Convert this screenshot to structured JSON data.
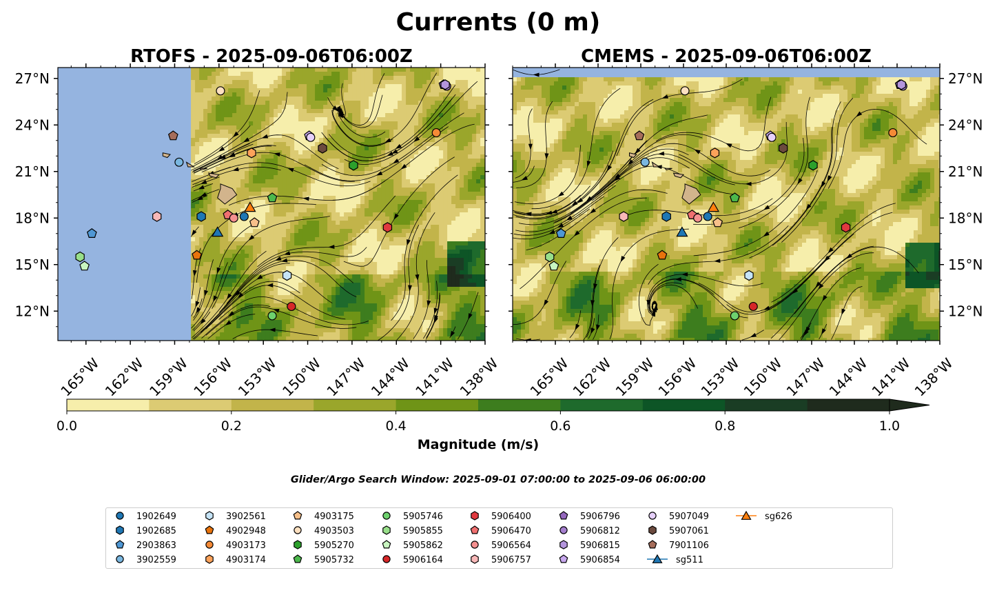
{
  "chart_data": {
    "type": "map-contour-streamplot",
    "title": "Currents (0 m)",
    "panels": [
      {
        "title": "RTOFS - 2025-09-06T06:00Z",
        "model": "RTOFS"
      },
      {
        "title": "CMEMS - 2025-09-06T06:00Z",
        "model": "CMEMS"
      }
    ],
    "lon_range": [
      -167,
      -138
    ],
    "lat_range": [
      10,
      28
    ],
    "lon_ticks": [
      {
        "value": -165,
        "label": "165°W"
      },
      {
        "value": -162,
        "label": "162°W"
      },
      {
        "value": -159,
        "label": "159°W"
      },
      {
        "value": -156,
        "label": "156°W"
      },
      {
        "value": -153,
        "label": "153°W"
      },
      {
        "value": -150,
        "label": "150°W"
      },
      {
        "value": -147,
        "label": "147°W"
      },
      {
        "value": -144,
        "label": "144°W"
      },
      {
        "value": -141,
        "label": "141°W"
      },
      {
        "value": -138,
        "label": "138°W"
      }
    ],
    "lat_ticks": [
      {
        "value": 27,
        "label": "27°N"
      },
      {
        "value": 24,
        "label": "24°N"
      },
      {
        "value": 21,
        "label": "21°N"
      },
      {
        "value": 18,
        "label": "18°N"
      },
      {
        "value": 15,
        "label": "15°N"
      },
      {
        "value": 12,
        "label": "12°N"
      }
    ],
    "colorbar": {
      "label": "Magnitude (m/s)",
      "min": 0.0,
      "max": 1.0,
      "extend": "max",
      "levels": [
        0.0,
        0.1,
        0.2,
        0.3,
        0.4,
        0.5,
        0.6,
        0.7,
        0.8,
        0.9,
        1.0
      ],
      "colors": [
        "#f6eeab",
        "#dccb73",
        "#c2b44a",
        "#9aa62b",
        "#6f9417",
        "#3d7d1e",
        "#1e6a2c",
        "#0d5526",
        "#1a3d24",
        "#1f2b1d"
      ],
      "ticks": [
        {
          "value": 0.0,
          "label": "0.0"
        },
        {
          "value": 0.2,
          "label": "0.2"
        },
        {
          "value": 0.4,
          "label": "0.4"
        },
        {
          "value": 0.6,
          "label": "0.6"
        },
        {
          "value": 0.8,
          "label": "0.8"
        },
        {
          "value": 1.0,
          "label": "1.0"
        }
      ]
    },
    "subtitle": "Glider/Argo Search Window: 2025-09-01 07:00:00 to 2025-09-06 06:00:00",
    "platforms": [
      {
        "id": "1902649",
        "marker": "circle",
        "color": "#1f77b4",
        "lon": -154.3,
        "lat": 18.1
      },
      {
        "id": "1902685",
        "marker": "hexagon",
        "color": "#1f77b4",
        "lon": -157.2,
        "lat": 18.1
      },
      {
        "id": "2903863",
        "marker": "pentagon",
        "color": "#4f97d4",
        "lon": -164.6,
        "lat": 17.0
      },
      {
        "id": "3902559",
        "marker": "circle",
        "color": "#7ab7e0",
        "lon": -158.7,
        "lat": 21.6
      },
      {
        "id": "3902561",
        "marker": "hexagon",
        "color": "#c6e4f7",
        "lon": -151.4,
        "lat": 14.3
      },
      {
        "id": "4902948",
        "marker": "pentagon",
        "color": "#e8730c",
        "lon": -157.5,
        "lat": 15.6
      },
      {
        "id": "4903173",
        "marker": "circle",
        "color": "#f58a36",
        "lon": -141.3,
        "lat": 23.5
      },
      {
        "id": "4903174",
        "marker": "hexagon",
        "color": "#fca25a",
        "lon": -153.8,
        "lat": 22.2
      },
      {
        "id": "4903175",
        "marker": "pentagon",
        "color": "#f7c08a",
        "lon": -153.6,
        "lat": 17.7
      },
      {
        "id": "4903503",
        "marker": "circle",
        "color": "#fde0c0",
        "lon": -155.9,
        "lat": 26.2
      },
      {
        "id": "5905270",
        "marker": "hexagon",
        "color": "#2ca02c",
        "lon": -146.9,
        "lat": 21.4
      },
      {
        "id": "5905732",
        "marker": "pentagon",
        "color": "#4cb84c",
        "lon": -152.4,
        "lat": 19.3
      },
      {
        "id": "5905746",
        "marker": "circle",
        "color": "#6ed16e",
        "lon": -152.4,
        "lat": 11.7
      },
      {
        "id": "5905855",
        "marker": "hexagon",
        "color": "#98df8a",
        "lon": -165.4,
        "lat": 15.5
      },
      {
        "id": "5905862",
        "marker": "pentagon",
        "color": "#c8f5c0",
        "lon": -165.1,
        "lat": 14.9
      },
      {
        "id": "5906164",
        "marker": "circle",
        "color": "#d62728",
        "lon": -151.1,
        "lat": 12.3
      },
      {
        "id": "5906400",
        "marker": "hexagon",
        "color": "#e0393f",
        "lon": -144.6,
        "lat": 17.4
      },
      {
        "id": "5906470",
        "marker": "pentagon",
        "color": "#f07070",
        "lon": -155.4,
        "lat": 18.2
      },
      {
        "id": "5906564",
        "marker": "circle",
        "color": "#f59090",
        "lon": -155.0,
        "lat": 18.0
      },
      {
        "id": "5906757",
        "marker": "hexagon",
        "color": "#f8b8b8",
        "lon": -160.2,
        "lat": 18.1
      },
      {
        "id": "5906796",
        "marker": "pentagon",
        "color": "#9467bd",
        "lon": -140.8,
        "lat": 26.6
      },
      {
        "id": "5906812",
        "marker": "circle",
        "color": "#a57fcf",
        "lon": -140.6,
        "lat": 26.5
      },
      {
        "id": "5906815",
        "marker": "hexagon",
        "color": "#b495dd",
        "lon": -140.7,
        "lat": 26.6
      },
      {
        "id": "5906854",
        "marker": "pentagon",
        "color": "#c8a8ee",
        "lon": -149.9,
        "lat": 23.3
      },
      {
        "id": "5907049",
        "marker": "circle",
        "color": "#e6d0fa",
        "lon": -149.8,
        "lat": 23.2
      },
      {
        "id": "5907061",
        "marker": "hexagon",
        "color": "#6b4a3e",
        "lon": -149.0,
        "lat": 22.5
      },
      {
        "id": "7901106",
        "marker": "pentagon",
        "color": "#a56d5a",
        "lon": -159.1,
        "lat": 23.3
      },
      {
        "id": "sg511",
        "marker": "triangle",
        "color": "#1f77b4",
        "lon": -156.1,
        "lat": 17.1,
        "line": true
      },
      {
        "id": "sg626",
        "marker": "triangle",
        "color": "#ff7f0e",
        "lon": -153.9,
        "lat": 18.7,
        "line": true
      }
    ]
  }
}
